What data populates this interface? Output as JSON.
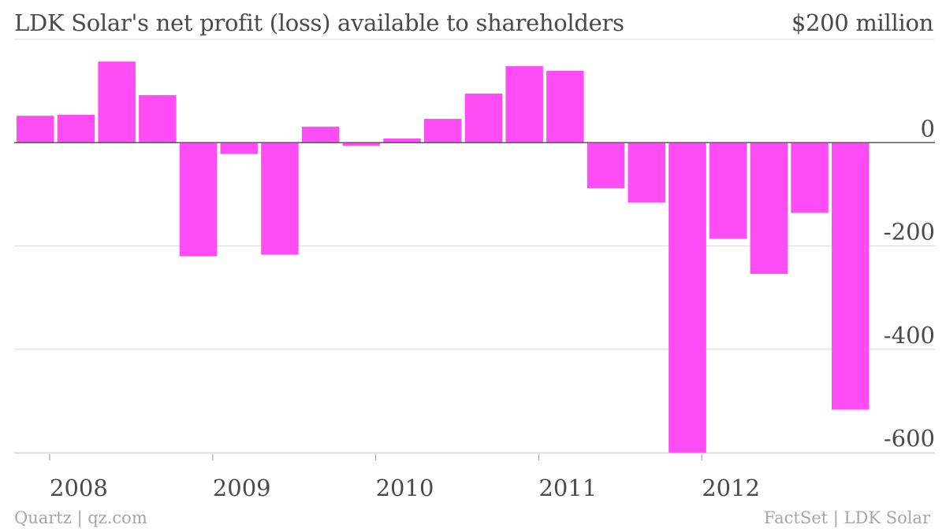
{
  "title": "LDK Solar's net profit (loss) available to shareholders",
  "unit_label": "$200 million",
  "source_left": "Quartz | qz.com",
  "source_right": "FactSet | LDK Solar",
  "colors": {
    "bar": "#ff4cf5",
    "grid": "#dcdcdc",
    "zero_line": "#5a5a5a",
    "text": "#4a4a4a",
    "footer": "#a6a6a6"
  },
  "chart_data": {
    "type": "bar",
    "title": "LDK Solar's net profit (loss) available to shareholders",
    "xlabel": "",
    "ylabel": "$200 million",
    "ylim": [
      -600,
      200
    ],
    "yticks": [
      0,
      -200,
      -400,
      -600
    ],
    "ytick_labels": [
      "0",
      "-200",
      "-400",
      "-600"
    ],
    "x_tick_labels": [
      "2008",
      "2009",
      "2010",
      "2011",
      "2012"
    ],
    "categories": [
      "Q1 2008",
      "Q2 2008",
      "Q3 2008",
      "Q4 2008",
      "Q1 2009",
      "Q2 2009",
      "Q3 2009",
      "Q4 2009",
      "Q1 2010",
      "Q2 2010",
      "Q3 2010",
      "Q4 2010",
      "Q1 2011",
      "Q2 2011",
      "Q3 2011",
      "Q4 2011",
      "Q1 2012",
      "Q2 2012",
      "Q3 2012",
      "Q4 2012",
      "Q1 2013"
    ],
    "values": [
      52,
      54,
      157,
      92,
      -220,
      -22,
      -217,
      31,
      -6,
      8,
      46,
      95,
      148,
      139,
      -88,
      -116,
      -600,
      -186,
      -254,
      -136,
      -517
    ],
    "grid": true,
    "axis_position": "right"
  }
}
